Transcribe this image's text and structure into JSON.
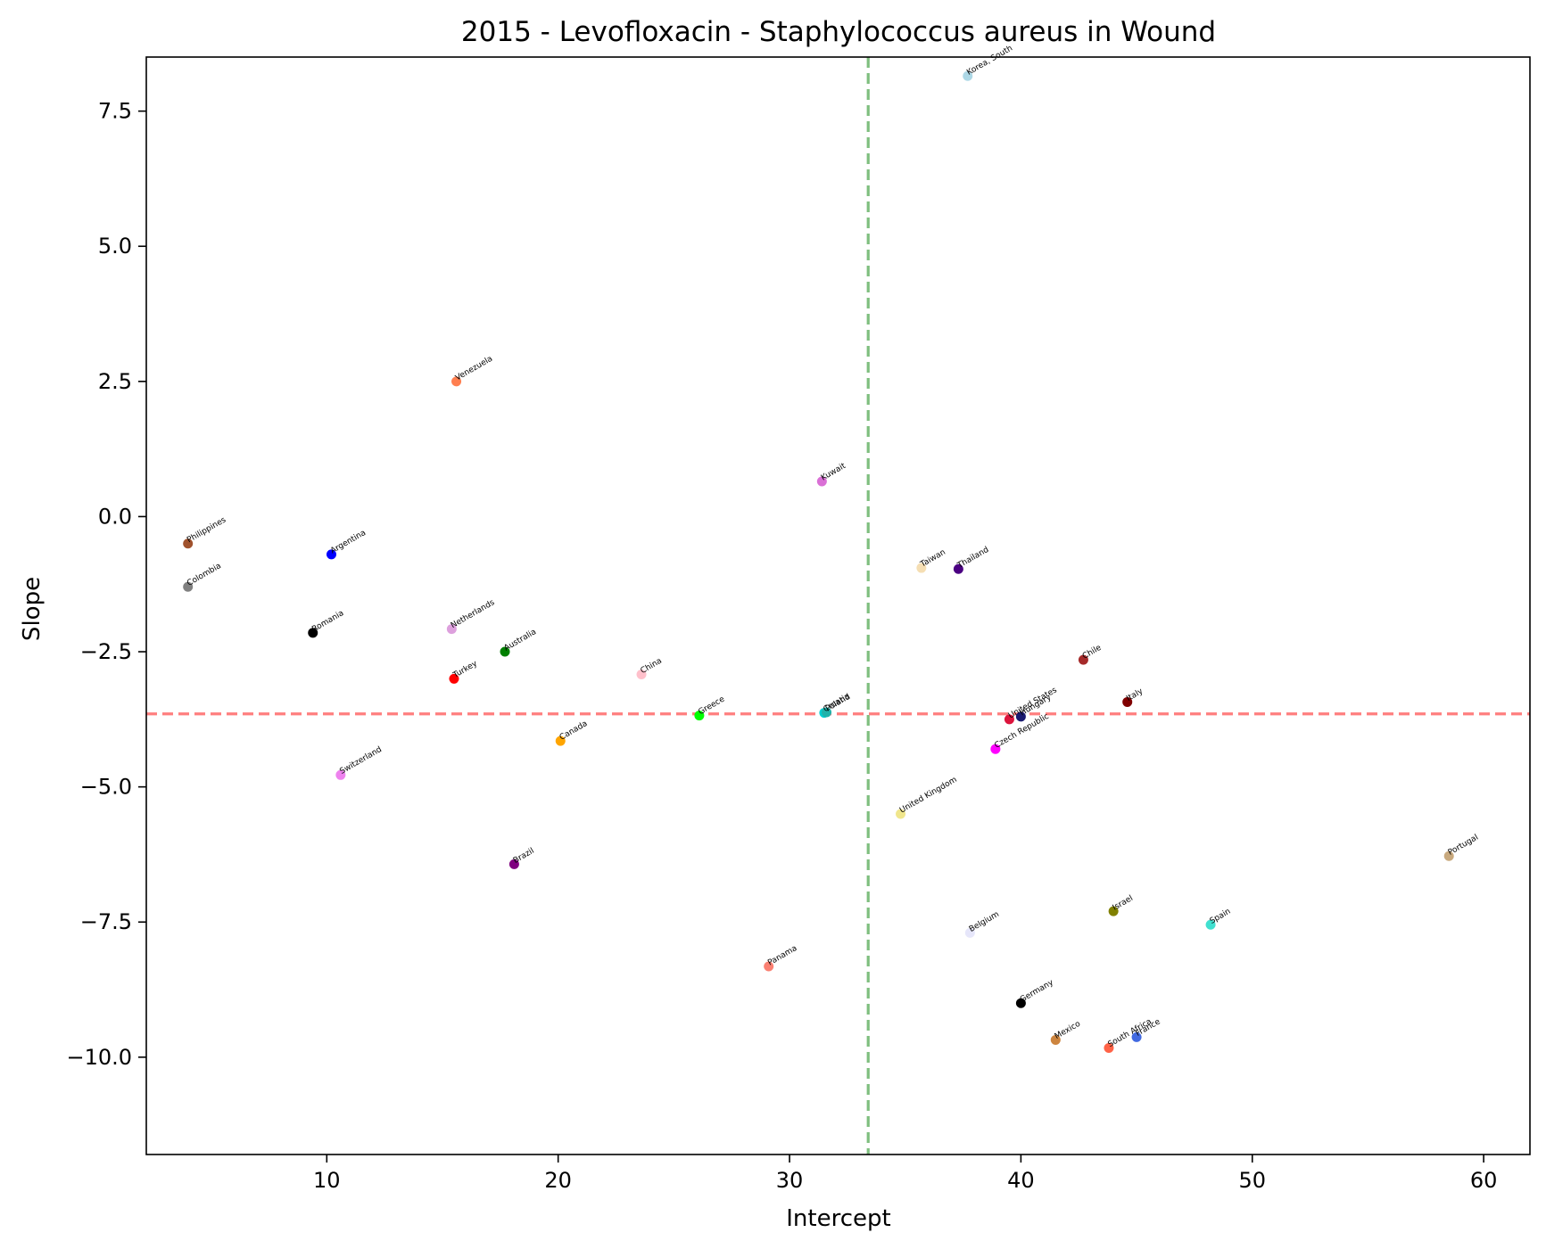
{
  "chart_data": {
    "type": "scatter",
    "title": "2015 - Levofloxacin - Staphylococcus aureus in Wound",
    "xlabel": "Intercept",
    "ylabel": "Slope",
    "xlim": [
      2.2,
      62.0
    ],
    "ylim": [
      -11.8,
      8.5
    ],
    "x_ticks": [
      10,
      20,
      30,
      40,
      50,
      60
    ],
    "x_tick_labels": [
      "10",
      "20",
      "30",
      "40",
      "50",
      "60"
    ],
    "y_ticks": [
      7.5,
      5.0,
      2.5,
      0.0,
      -2.5,
      -5.0,
      -7.5,
      -10.0
    ],
    "y_tick_labels": [
      "7.5",
      "5.0",
      "2.5",
      "0.0",
      "−2.5",
      "−5.0",
      "−7.5",
      "−10.0"
    ],
    "grid": false,
    "reference_lines": [
      {
        "orientation": "vertical",
        "x": 33.4,
        "color": "#7fbf7f",
        "style": "dashed"
      },
      {
        "orientation": "horizontal",
        "y": -3.65,
        "color": "#ff7f7f",
        "style": "dashed"
      }
    ],
    "points": [
      {
        "label": "Korea, South",
        "x": 37.7,
        "y": 8.15,
        "color": "#add8e6"
      },
      {
        "label": "Venezuela",
        "x": 15.6,
        "y": 2.5,
        "color": "#ff7f50"
      },
      {
        "label": "Kuwait",
        "x": 31.4,
        "y": 0.65,
        "color": "#da70d6"
      },
      {
        "label": "Philippines",
        "x": 4.0,
        "y": -0.5,
        "color": "#a0522d"
      },
      {
        "label": "Argentina",
        "x": 10.2,
        "y": -0.7,
        "color": "#0000ff"
      },
      {
        "label": "Colombia",
        "x": 4.0,
        "y": -1.3,
        "color": "#808080"
      },
      {
        "label": "Taiwan",
        "x": 35.7,
        "y": -0.95,
        "color": "#f5deb3"
      },
      {
        "label": "Thailand",
        "x": 37.3,
        "y": -0.97,
        "color": "#4b0082"
      },
      {
        "label": "Romania",
        "x": 9.4,
        "y": -2.15,
        "color": "#000000"
      },
      {
        "label": "Netherlands",
        "x": 15.4,
        "y": -2.08,
        "color": "#dda0dd"
      },
      {
        "label": "Australia",
        "x": 17.7,
        "y": -2.5,
        "color": "#008000"
      },
      {
        "label": "Turkey",
        "x": 15.5,
        "y": -3.0,
        "color": "#ff0000"
      },
      {
        "label": "China",
        "x": 23.6,
        "y": -2.92,
        "color": "#ffc0cb"
      },
      {
        "label": "Chile",
        "x": 42.7,
        "y": -2.65,
        "color": "#a52a2a"
      },
      {
        "label": "Italy",
        "x": 44.6,
        "y": -3.43,
        "color": "#800000"
      },
      {
        "label": "Greece",
        "x": 26.1,
        "y": -3.68,
        "color": "#00ff00"
      },
      {
        "label": "Croatia",
        "x": 31.5,
        "y": -3.63,
        "color": "#00ced1"
      },
      {
        "label": "Poland",
        "x": 31.6,
        "y": -3.62,
        "color": "#20b2aa"
      },
      {
        "label": "United States",
        "x": 39.5,
        "y": -3.75,
        "color": "#dc143c"
      },
      {
        "label": "Hungary",
        "x": 40.0,
        "y": -3.7,
        "color": "#191970"
      },
      {
        "label": "Canada",
        "x": 20.1,
        "y": -4.15,
        "color": "#ffa500"
      },
      {
        "label": "Czech Republic",
        "x": 38.9,
        "y": -4.3,
        "color": "#ff00ff"
      },
      {
        "label": "Switzerland",
        "x": 10.6,
        "y": -4.78,
        "color": "#ee82ee"
      },
      {
        "label": "United Kingdom",
        "x": 34.8,
        "y": -5.5,
        "color": "#f0e68c"
      },
      {
        "label": "Portugal",
        "x": 58.5,
        "y": -6.28,
        "color": "#c8a97e"
      },
      {
        "label": "Brazil",
        "x": 18.1,
        "y": -6.43,
        "color": "#800080"
      },
      {
        "label": "Israel",
        "x": 44.0,
        "y": -7.3,
        "color": "#808000"
      },
      {
        "label": "Spain",
        "x": 48.2,
        "y": -7.55,
        "color": "#40e0d0"
      },
      {
        "label": "Belgium",
        "x": 37.8,
        "y": -7.7,
        "color": "#e6e6fa"
      },
      {
        "label": "Panama",
        "x": 29.1,
        "y": -8.32,
        "color": "#fa8072"
      },
      {
        "label": "Germany",
        "x": 40.0,
        "y": -9.0,
        "color": "#000000"
      },
      {
        "label": "Mexico",
        "x": 41.5,
        "y": -9.68,
        "color": "#cd853f"
      },
      {
        "label": "France",
        "x": 45.0,
        "y": -9.63,
        "color": "#4169e1"
      },
      {
        "label": "South Africa",
        "x": 43.8,
        "y": -9.83,
        "color": "#ff6347"
      }
    ]
  }
}
